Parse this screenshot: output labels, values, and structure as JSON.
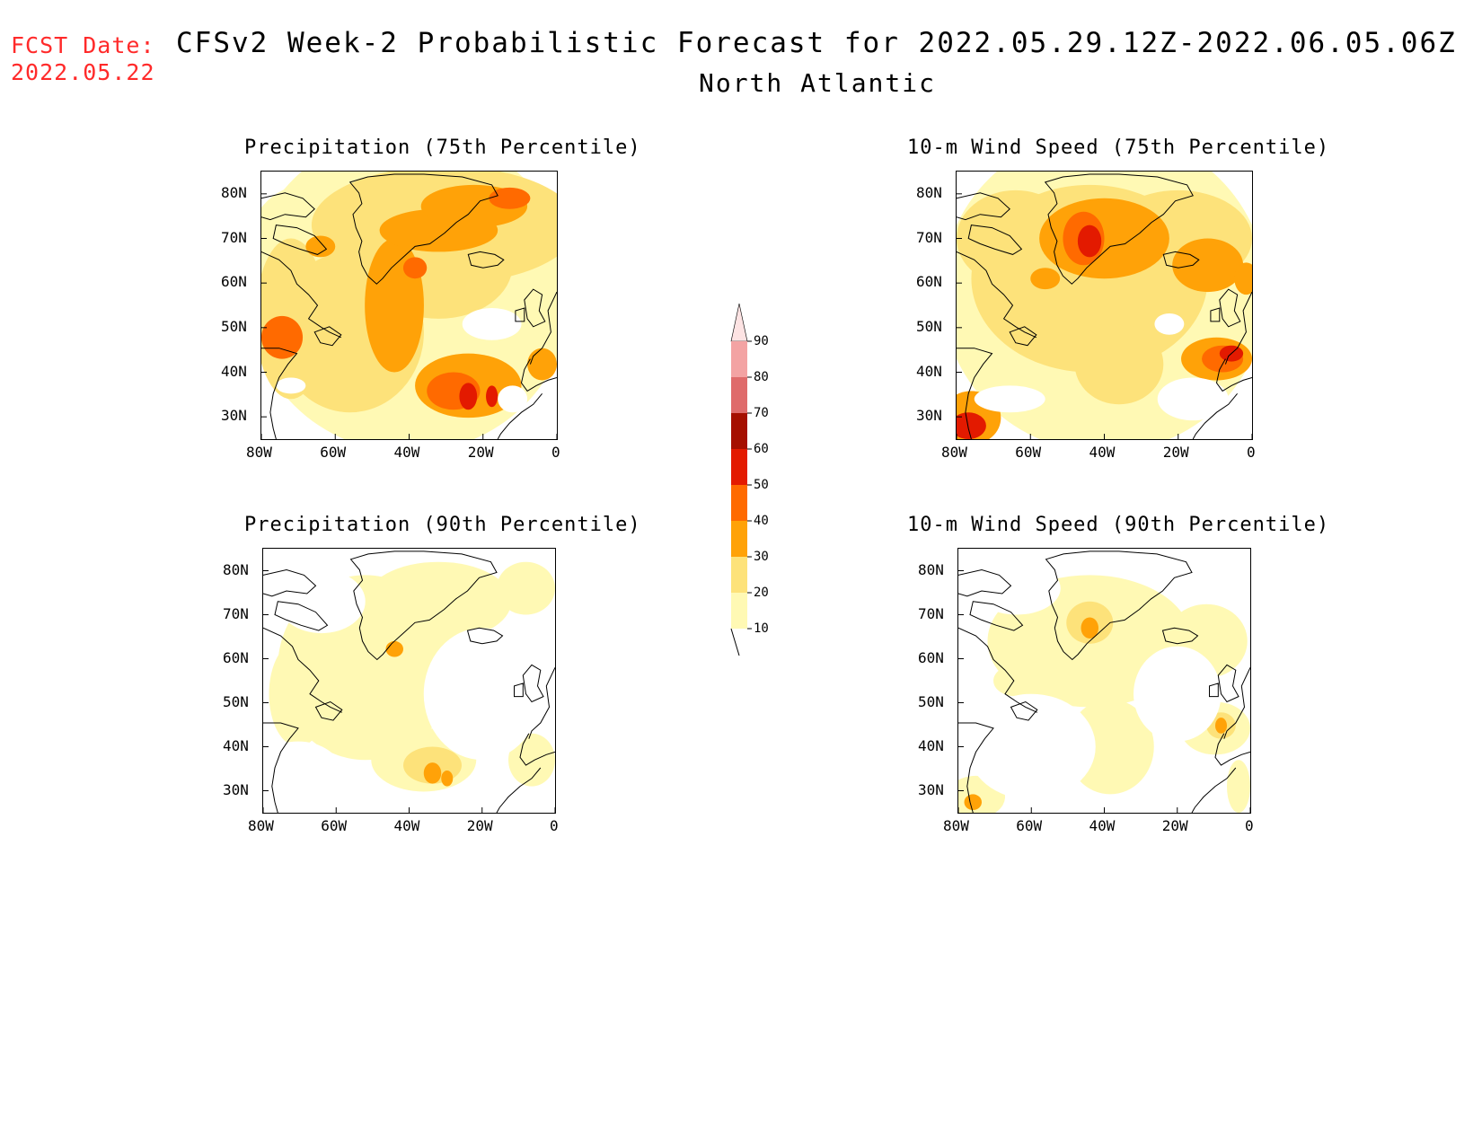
{
  "header": {
    "fcst_label": "FCST Date:",
    "fcst_date": "2022.05.22",
    "title": "CFSv2 Week-2 Probabilistic Forecast for 2022.05.29.12Z-2022.06.05.06Z",
    "subtitle": "North Atlantic"
  },
  "colors": {
    "accent_red": "#ff2a2a",
    "levels": [
      "#fff9b4",
      "#fde27a",
      "#ffa208",
      "#ff6a00",
      "#e31a00",
      "#a50f00",
      "#df6b6b",
      "#f3a3a3",
      "#fde3e3"
    ]
  },
  "panels": [
    {
      "id": "precip-75",
      "title": "Precipitation (75th Percentile)"
    },
    {
      "id": "wind-75",
      "title": "10-m Wind Speed (75th Percentile)"
    },
    {
      "id": "precip-90",
      "title": "Precipitation (90th Percentile)"
    },
    {
      "id": "wind-90",
      "title": "10-m Wind Speed (90th Percentile)"
    }
  ],
  "axes": {
    "lat_labels": [
      "80N",
      "70N",
      "60N",
      "50N",
      "40N",
      "30N"
    ],
    "lon_labels": [
      "80W",
      "60W",
      "40W",
      "20W",
      "0"
    ]
  },
  "colorbar": {
    "labels": [
      "90",
      "80",
      "70",
      "60",
      "50",
      "40",
      "30",
      "20",
      "10"
    ]
  }
}
